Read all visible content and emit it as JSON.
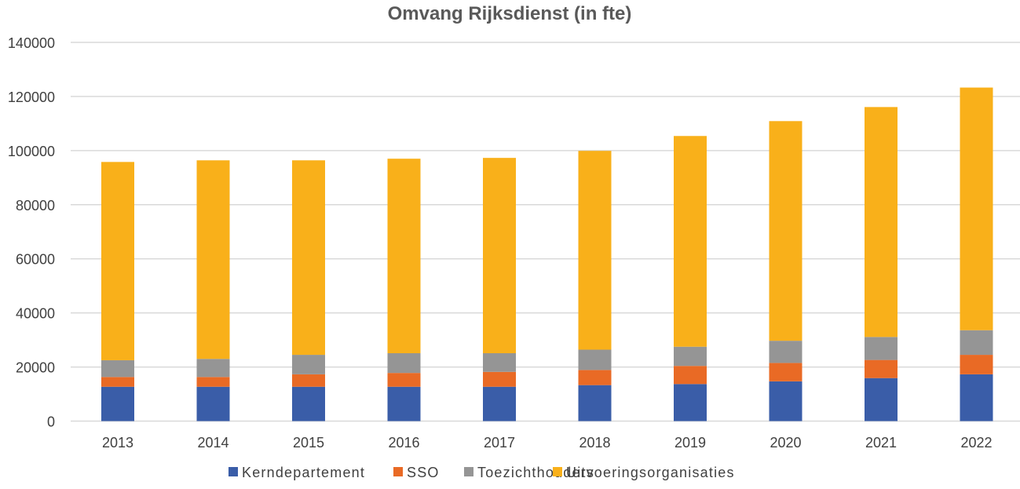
{
  "chart_data": {
    "type": "bar",
    "stacked": true,
    "title": "Omvang Rijksdienst (in fte)",
    "xlabel": "",
    "ylabel": "",
    "ylim": [
      0,
      140000
    ],
    "yticks": [
      0,
      20000,
      40000,
      60000,
      80000,
      100000,
      120000,
      140000
    ],
    "grid": true,
    "legend": "bottom",
    "categories": [
      "2013",
      "2014",
      "2015",
      "2016",
      "2017",
      "2018",
      "2019",
      "2020",
      "2021",
      "2022"
    ],
    "series": [
      {
        "name": "Kerndepartement",
        "color": "#3A5DA8",
        "values": [
          12700,
          12700,
          12700,
          12700,
          12700,
          13300,
          13700,
          14700,
          15900,
          17300
        ]
      },
      {
        "name": "SSO",
        "color": "#E96A25",
        "values": [
          3600,
          3600,
          4600,
          5100,
          5500,
          5600,
          6700,
          6800,
          6700,
          7200
        ]
      },
      {
        "name": "Toezichthouders",
        "color": "#959595",
        "values": [
          6200,
          6700,
          7200,
          7300,
          6900,
          7500,
          7100,
          8200,
          8500,
          9100
        ]
      },
      {
        "name": "Uitvoeringsorganisaties",
        "color": "#F9B01A",
        "values": [
          73300,
          73400,
          71900,
          71900,
          72200,
          73500,
          77900,
          81200,
          85000,
          89700
        ]
      }
    ]
  }
}
